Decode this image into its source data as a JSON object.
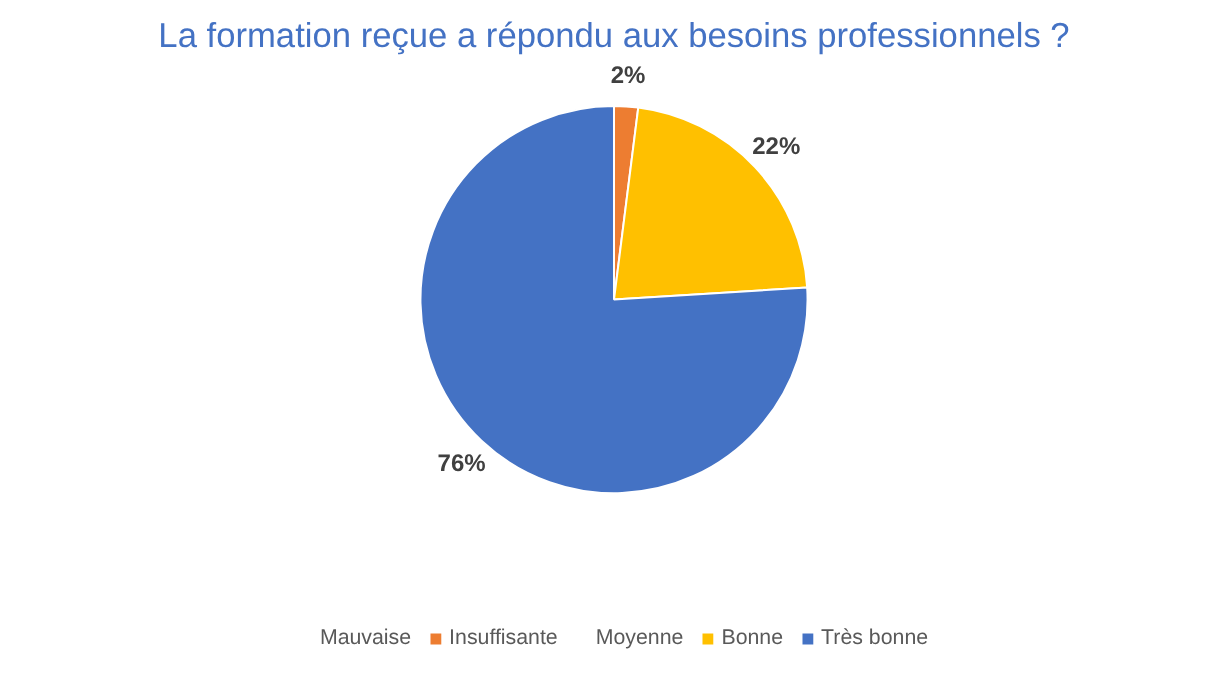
{
  "chart_data": {
    "type": "pie",
    "title": "La formation reçue a répondu aux besoins professionnels ?",
    "categories": [
      "Mauvaise",
      "Insuffisante",
      "Moyenne",
      "Bonne",
      "Très bonne"
    ],
    "values": [
      0,
      2,
      0,
      22,
      76
    ],
    "colors": [
      "#5b9bd5",
      "#ed7d31",
      "#a5a5a5",
      "#ffc000",
      "#4472c4"
    ],
    "value_labels": [
      null,
      "2%",
      null,
      "22%",
      "76%"
    ],
    "legend": "bottom"
  }
}
